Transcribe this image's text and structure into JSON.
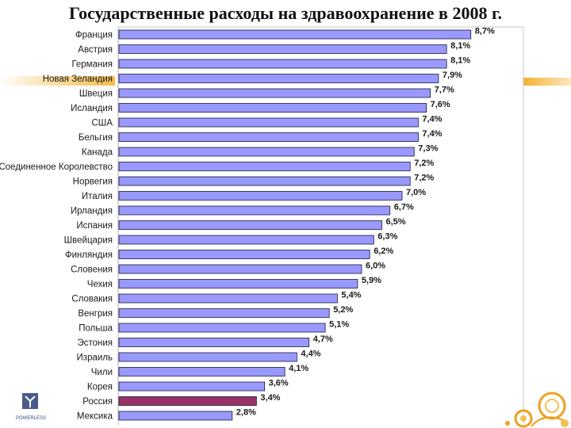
{
  "slide": {
    "title": "Государственные расходы на здравоохранение в 2008 г.",
    "logo_text": "POWERLESS"
  },
  "chart_data": {
    "type": "bar",
    "orientation": "horizontal",
    "title": "Государственные расходы на здравоохранение в 2008 г.",
    "xlabel": "",
    "ylabel": "",
    "xlim": [
      0,
      9.3
    ],
    "grid": false,
    "legend": "none",
    "categories": [
      "Франция",
      "Австрия",
      "Германия",
      "Новая Зеландия",
      "Швеция",
      "Исландия",
      "США",
      "Бельгия",
      "Канада",
      "Соединенное Королевство",
      "Норвегия",
      "Италия",
      "Ирландия",
      "Испания",
      "Швейцария",
      "Финляндия",
      "Словения",
      "Чехия",
      "Словакия",
      "Венгрия",
      "Польша",
      "Эстония",
      "Израиль",
      "Чили",
      "Корея",
      "Россия",
      "Мексика"
    ],
    "values": [
      8.7,
      8.1,
      8.1,
      7.9,
      7.7,
      7.6,
      7.4,
      7.4,
      7.3,
      7.2,
      7.2,
      7.0,
      6.7,
      6.5,
      6.3,
      6.2,
      6.0,
      5.9,
      5.4,
      5.2,
      5.1,
      4.7,
      4.4,
      4.1,
      3.6,
      3.4,
      2.8
    ],
    "value_labels": [
      "8,7%",
      "8,1%",
      "8,1%",
      "7,9%",
      "7,7%",
      "7,6%",
      "7,4%",
      "7,4%",
      "7,3%",
      "7,2%",
      "7,2%",
      "7,0%",
      "6,7%",
      "6,5%",
      "6,3%",
      "6,2%",
      "6,0%",
      "5,9%",
      "5,4%",
      "5,2%",
      "5,1%",
      "4,7%",
      "4,4%",
      "4,1%",
      "3,6%",
      "3,4%",
      "2,8%"
    ],
    "highlight": "Россия",
    "colors": {
      "bar": "#9999ff",
      "highlight": "#993366",
      "bar_edge": "#1a1a3a",
      "label": "#1a1a1a"
    }
  }
}
